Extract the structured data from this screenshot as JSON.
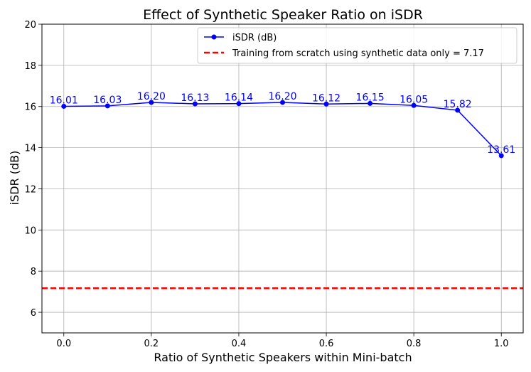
{
  "chart_data": {
    "type": "line",
    "title": "Effect of Synthetic Speaker Ratio on iSDR",
    "xlabel": "Ratio of Synthetic Speakers within Mini-batch",
    "ylabel": "iSDR (dB)",
    "xlim": [
      -0.05,
      1.05
    ],
    "ylim": [
      5,
      20
    ],
    "xticks": [
      0.0,
      0.2,
      0.4,
      0.6,
      0.8,
      1.0
    ],
    "xtick_labels": [
      "0.0",
      "0.2",
      "0.4",
      "0.6",
      "0.8",
      "1.0"
    ],
    "yticks": [
      6,
      8,
      10,
      12,
      14,
      16,
      18,
      20
    ],
    "ytick_labels": [
      "6",
      "8",
      "10",
      "12",
      "14",
      "16",
      "18",
      "20"
    ],
    "grid": true,
    "series": [
      {
        "name": "iSDR (dB)",
        "color": "#0000ff",
        "marker": "circle",
        "x": [
          0.0,
          0.1,
          0.2,
          0.3,
          0.4,
          0.5,
          0.6,
          0.7,
          0.8,
          0.9,
          1.0
        ],
        "values": [
          16.01,
          16.03,
          16.2,
          16.13,
          16.14,
          16.2,
          16.12,
          16.15,
          16.05,
          15.82,
          13.61
        ],
        "labels": [
          "16.01",
          "16.03",
          "16.20",
          "16.13",
          "16.14",
          "16.20",
          "16.12",
          "16.15",
          "16.05",
          "15.82",
          "13.61"
        ]
      }
    ],
    "reference_line": {
      "name": "Training from scratch using synthetic data only = 7.17",
      "value": 7.17,
      "color": "#ff0000",
      "style": "dashed"
    },
    "legend": {
      "placement": "top-right",
      "entries": [
        "iSDR (dB)",
        "Training from scratch using synthetic data only = 7.17"
      ]
    }
  }
}
